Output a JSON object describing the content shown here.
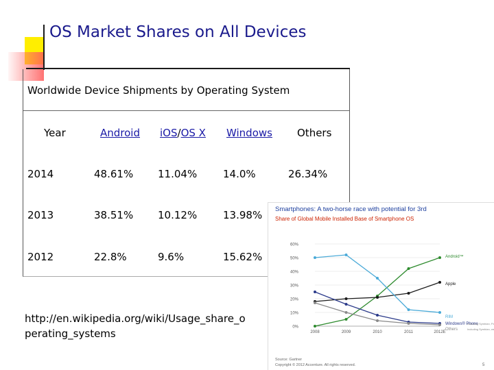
{
  "slide": {
    "title": "OS Market Shares on All Devices",
    "source_url_line1": "http://en.wikipedia.org/wiki/Usage_share_o",
    "source_url_line2": "perating_systems"
  },
  "table": {
    "caption": "Worldwide Device Shipments by Operating System",
    "headers": {
      "year": "Year",
      "android": "Android",
      "ios_part1": "iOS",
      "ios_sep": "/",
      "ios_part2": "OS X",
      "windows": "Windows",
      "others": "Others"
    },
    "rows": [
      {
        "year": "2014",
        "android": "48.61%",
        "ios": "11.04%",
        "windows": "14.0%",
        "others": "26.34%"
      },
      {
        "year": "2013",
        "android": "38.51%",
        "ios": "10.12%",
        "windows": "13.98%",
        "others": ""
      },
      {
        "year": "2012",
        "android": "22.8%",
        "ios": "9.6%",
        "windows": "15.62%",
        "others": ""
      }
    ]
  },
  "chart_image": {
    "title": "Smartphones: A two-horse race with potential for 3rd",
    "subtitle": "Share of Global Mobile Installed Base of Smartphone OS",
    "chart_data": {
      "type": "line",
      "x": [
        "2008",
        "2009",
        "2010",
        "2011",
        "2012E"
      ],
      "yticks": [
        "0%",
        "10%",
        "20%",
        "30%",
        "40%",
        "50%",
        "60%"
      ],
      "ylim": [
        0,
        60
      ],
      "series": [
        {
          "name": "Android™",
          "color": "#2e8b2e",
          "values": [
            0,
            5,
            22,
            42,
            50
          ]
        },
        {
          "name": "Apple",
          "color": "#1a1a1a",
          "values": [
            18,
            20,
            21,
            24,
            32
          ]
        },
        {
          "name": "RIM",
          "color": "#4aaad8",
          "values": [
            50,
            52,
            35,
            12,
            10
          ]
        },
        {
          "name": "Windows® Phone",
          "color": "#2b3a8a",
          "values": [
            25,
            16,
            8,
            3,
            2
          ]
        },
        {
          "name": "Others",
          "color": "#8a8a8a",
          "values": [
            17,
            10,
            4,
            2,
            1
          ]
        }
      ],
      "series_notes": {
        "Windows® Phone": "Including Symbian, Palm, Linux, etc.",
        "Others": "Including Symbian, webOS, Palm"
      }
    },
    "source_text": "Source: Gartner",
    "copyright": "Copyright © 2012 Accenture. All rights reserved.",
    "page_number": "5"
  }
}
